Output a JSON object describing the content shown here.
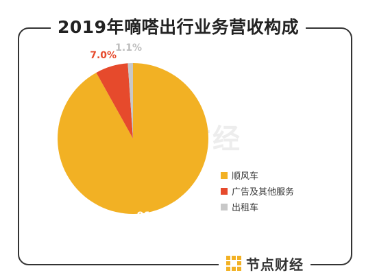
{
  "chart_data": {
    "type": "pie",
    "title": "2019年嘀嗒出行业务营收构成",
    "categories": [
      "顺风车",
      "广告及其他服务",
      "出租车"
    ],
    "values": [
      91.9,
      7.0,
      1.1
    ],
    "labels": [
      "91.9%",
      "7.0%",
      "1.1%"
    ],
    "colors": [
      "#F2B124",
      "#E64A2C",
      "#C8C8C8"
    ],
    "legend_position": "right"
  },
  "branding": {
    "name": "节点财经",
    "logo_icon": "dot-grid-logo-icon",
    "logo_color": "#F2B124"
  }
}
